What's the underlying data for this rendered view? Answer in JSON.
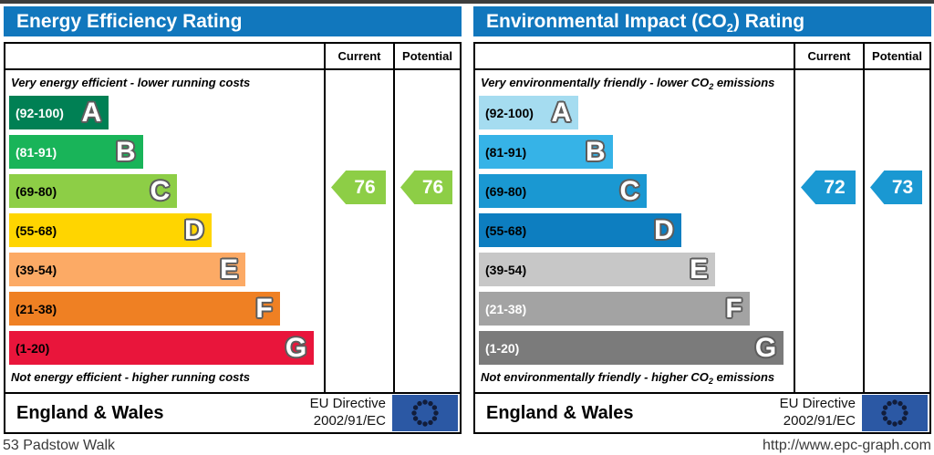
{
  "page": {
    "address": "53 Padstow Walk",
    "website": "http://www.epc-graph.com"
  },
  "colors": {
    "header_blue": "#1177bd",
    "top_strip": "#3d3d3d",
    "border": "#000000",
    "eu_flag_blue": "#2b58a4",
    "letter_outline": "#5d5d5d"
  },
  "charts": [
    {
      "title": {
        "prefix": "Energy Efficiency Rating",
        "sub": "",
        "suffix": ""
      },
      "columns": {
        "current": "Current",
        "potential": "Potential"
      },
      "caption_top": {
        "prefix": "Very energy efficient - lower running costs",
        "sub": "",
        "suffix": ""
      },
      "caption_bottom": {
        "prefix": "Not energy efficient - higher running costs",
        "sub": "",
        "suffix": ""
      },
      "bands": [
        {
          "letter": "A",
          "range": "(92-100)",
          "color": "#008054",
          "label_color": "#ffffff",
          "width_pct": 32
        },
        {
          "letter": "B",
          "range": "(81-91)",
          "color": "#19b459",
          "label_color": "#ffffff",
          "width_pct": 43
        },
        {
          "letter": "C",
          "range": "(69-80)",
          "color": "#8dce46",
          "label_color": "#000000",
          "width_pct": 54
        },
        {
          "letter": "D",
          "range": "(55-68)",
          "color": "#ffd500",
          "label_color": "#000000",
          "width_pct": 65
        },
        {
          "letter": "E",
          "range": "(39-54)",
          "color": "#fcaa65",
          "label_color": "#000000",
          "width_pct": 76
        },
        {
          "letter": "F",
          "range": "(21-38)",
          "color": "#ef8023",
          "label_color": "#000000",
          "width_pct": 87
        },
        {
          "letter": "G",
          "range": "(1-20)",
          "color": "#e9153b",
          "label_color": "#000000",
          "width_pct": 98
        }
      ],
      "current": {
        "value": "76",
        "color": "#8dce46"
      },
      "potential": {
        "value": "76",
        "color": "#8dce46"
      },
      "footer": {
        "region": "England & Wales",
        "directive_line1": "EU Directive",
        "directive_line2": "2002/91/EC"
      }
    },
    {
      "title": {
        "prefix": "Environmental Impact (CO",
        "sub": "2",
        "suffix": ") Rating"
      },
      "columns": {
        "current": "Current",
        "potential": "Potential"
      },
      "caption_top": {
        "prefix": "Very environmentally friendly - lower CO",
        "sub": "2",
        "suffix": " emissions"
      },
      "caption_bottom": {
        "prefix": "Not environmentally friendly - higher CO",
        "sub": "2",
        "suffix": " emissions"
      },
      "bands": [
        {
          "letter": "A",
          "range": "(92-100)",
          "color": "#a5dcf0",
          "label_color": "#000000",
          "width_pct": 32
        },
        {
          "letter": "B",
          "range": "(81-91)",
          "color": "#36b3e7",
          "label_color": "#000000",
          "width_pct": 43
        },
        {
          "letter": "C",
          "range": "(69-80)",
          "color": "#1a98d2",
          "label_color": "#000000",
          "width_pct": 54
        },
        {
          "letter": "D",
          "range": "(55-68)",
          "color": "#0d7ec0",
          "label_color": "#000000",
          "width_pct": 65
        },
        {
          "letter": "E",
          "range": "(39-54)",
          "color": "#c7c7c7",
          "label_color": "#000000",
          "width_pct": 76
        },
        {
          "letter": "F",
          "range": "(21-38)",
          "color": "#a3a3a3",
          "label_color": "#ffffff",
          "width_pct": 87
        },
        {
          "letter": "G",
          "range": "(1-20)",
          "color": "#7b7b7b",
          "label_color": "#ffffff",
          "width_pct": 98
        }
      ],
      "current": {
        "value": "72",
        "color": "#1a98d2"
      },
      "potential": {
        "value": "73",
        "color": "#1a98d2"
      },
      "footer": {
        "region": "England & Wales",
        "directive_line1": "EU Directive",
        "directive_line2": "2002/91/EC"
      }
    }
  ],
  "chart_data": [
    {
      "type": "bar",
      "title": "Energy Efficiency Rating",
      "categories": [
        "A (92-100)",
        "B (81-91)",
        "C (69-80)",
        "D (55-68)",
        "E (39-54)",
        "F (21-38)",
        "G (1-20)"
      ],
      "band_widths_pct": [
        32,
        43,
        54,
        65,
        76,
        87,
        98
      ],
      "band_colors": [
        "#008054",
        "#19b459",
        "#8dce46",
        "#ffd500",
        "#fcaa65",
        "#ef8023",
        "#e9153b"
      ],
      "current": 76,
      "potential": 76,
      "current_band": "C",
      "potential_band": "C",
      "top_annotation": "Very energy efficient - lower running costs",
      "bottom_annotation": "Not energy efficient - higher running costs",
      "footer": "England & Wales — EU Directive 2002/91/EC",
      "legend_position": "top-right-columns",
      "xlim": [
        1,
        100
      ]
    },
    {
      "type": "bar",
      "title": "Environmental Impact (CO2) Rating",
      "categories": [
        "A (92-100)",
        "B (81-91)",
        "C (69-80)",
        "D (55-68)",
        "E (39-54)",
        "F (21-38)",
        "G (1-20)"
      ],
      "band_widths_pct": [
        32,
        43,
        54,
        65,
        76,
        87,
        98
      ],
      "band_colors": [
        "#a5dcf0",
        "#36b3e7",
        "#1a98d2",
        "#0d7ec0",
        "#c7c7c7",
        "#a3a3a3",
        "#7b7b7b"
      ],
      "current": 72,
      "potential": 73,
      "current_band": "C",
      "potential_band": "C",
      "top_annotation": "Very environmentally friendly - lower CO2 emissions",
      "bottom_annotation": "Not environmentally friendly - higher CO2 emissions",
      "footer": "England & Wales — EU Directive 2002/91/EC",
      "legend_position": "top-right-columns",
      "xlim": [
        1,
        100
      ]
    }
  ]
}
